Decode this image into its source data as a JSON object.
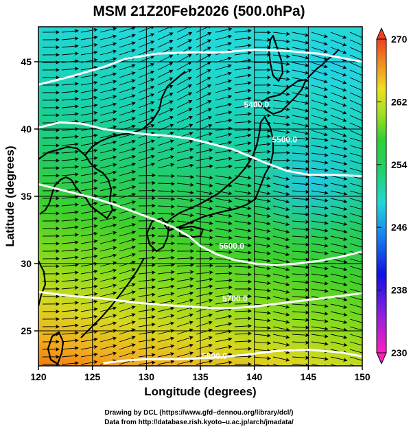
{
  "title": "MSM 21Z20Feb2026 (500.0hPa)",
  "xaxis": {
    "label": "Longitude (degrees)",
    "range": [
      120,
      150
    ],
    "ticks": [
      120,
      125,
      130,
      135,
      140,
      145,
      150
    ],
    "tick_labels": [
      "120",
      "125",
      "130",
      "135",
      "140",
      "145",
      "150"
    ]
  },
  "yaxis": {
    "label": "Latitude  (degrees)",
    "range": [
      22.4,
      47.6
    ],
    "ticks": [
      25,
      30,
      35,
      40,
      45
    ],
    "tick_labels": [
      "25",
      "30",
      "35",
      "40",
      "45"
    ]
  },
  "colorbar": {
    "range": [
      230,
      270
    ],
    "labels": [
      "270",
      "262",
      "254",
      "246",
      "238",
      "230"
    ],
    "label_values": [
      270,
      262,
      254,
      246,
      238,
      230
    ]
  },
  "contours": [
    {
      "label": "5400.0",
      "label_lon": 140.2,
      "label_lat": 41.6,
      "points": [
        [
          120,
          43.3
        ],
        [
          123,
          43.9
        ],
        [
          126,
          44.6
        ],
        [
          128,
          45.2
        ],
        [
          131,
          45.6
        ],
        [
          134,
          45.7
        ],
        [
          137,
          45.7
        ],
        [
          140,
          45.9
        ],
        [
          143,
          45.8
        ],
        [
          146,
          45.6
        ],
        [
          148,
          45.3
        ],
        [
          150,
          45.0
        ]
      ]
    },
    {
      "label": "5500.0",
      "label_lon": 142.8,
      "label_lat": 39.0,
      "points": [
        [
          120,
          40.1
        ],
        [
          122,
          40.5
        ],
        [
          124,
          40.4
        ],
        [
          126,
          40.0
        ],
        [
          128,
          39.8
        ],
        [
          130,
          39.6
        ],
        [
          132,
          39.5
        ],
        [
          134,
          39.3
        ],
        [
          136,
          38.9
        ],
        [
          138,
          38.5
        ],
        [
          139.5,
          38.0
        ],
        [
          141,
          37.5
        ],
        [
          143,
          36.9
        ],
        [
          145,
          36.6
        ],
        [
          147,
          36.6
        ],
        [
          150,
          36.5
        ]
      ]
    },
    {
      "label": "5600.0",
      "label_lon": 137.9,
      "label_lat": 31.1,
      "points": [
        [
          120,
          35.9
        ],
        [
          122,
          35.5
        ],
        [
          125,
          34.9
        ],
        [
          127,
          34.4
        ],
        [
          129,
          33.8
        ],
        [
          131,
          33.2
        ],
        [
          132.5,
          32.7
        ],
        [
          134,
          32.0
        ],
        [
          135,
          31.3
        ],
        [
          136.5,
          30.7
        ],
        [
          138,
          30.3
        ],
        [
          140,
          30.0
        ],
        [
          142,
          29.9
        ],
        [
          144,
          30.0
        ],
        [
          146,
          30.2
        ],
        [
          148,
          30.5
        ],
        [
          150,
          30.9
        ]
      ]
    },
    {
      "label": "5700.0",
      "label_lon": 138.2,
      "label_lat": 27.2,
      "points": [
        [
          120,
          27.9
        ],
        [
          123,
          27.6
        ],
        [
          126,
          27.4
        ],
        [
          129,
          27.1
        ],
        [
          132,
          26.9
        ],
        [
          134,
          26.8
        ],
        [
          136,
          26.7
        ],
        [
          138,
          26.7
        ],
        [
          140,
          26.8
        ],
        [
          142,
          27.0
        ],
        [
          145,
          27.3
        ],
        [
          148,
          27.6
        ],
        [
          150,
          27.8
        ]
      ]
    },
    {
      "label": "5800.0",
      "label_lon": 136.3,
      "label_lat": 22.9,
      "points": [
        [
          126,
          22.6
        ],
        [
          128,
          22.8
        ],
        [
          130,
          22.9
        ],
        [
          133,
          22.9
        ],
        [
          136,
          23.0
        ],
        [
          139,
          23.2
        ],
        [
          142,
          23.5
        ],
        [
          145,
          23.6
        ],
        [
          148,
          23.4
        ],
        [
          150,
          23.1
        ]
      ]
    }
  ],
  "footer": {
    "line1": "Drawing by DCL (https://www.gfd–dennou.org/library/dcl/)",
    "line2": "Data from http://database.rish.kyoto–u.ac.jp/arch/jmadata/"
  }
}
